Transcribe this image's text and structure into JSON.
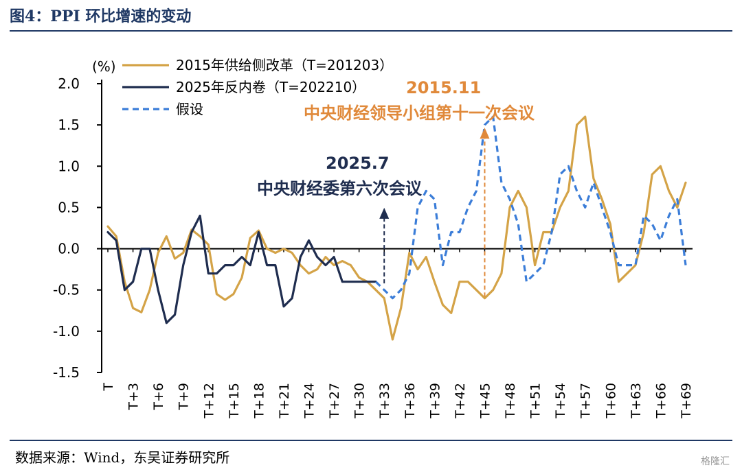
{
  "header": {
    "title": "图4：PPI 环比增速的变动"
  },
  "footer": {
    "source": "数据来源：Wind，东吴证券研究所",
    "watermark": "格隆汇"
  },
  "colors": {
    "s1": "#d4a347",
    "s2": "#1f2d4f",
    "s3": "#3b7dd8",
    "ann1": "#e0893a",
    "ann2": "#1f2d4f",
    "frame": "#1f3864"
  },
  "chart_data": {
    "type": "line",
    "unit_label": "(%)",
    "ylim": [
      -1.5,
      2.0
    ],
    "yticks": [
      "2.0",
      "1.5",
      "1.0",
      "0.5",
      "0.0",
      "-0.5",
      "-1.0",
      "-1.5"
    ],
    "ytick_values": [
      2.0,
      1.5,
      1.0,
      0.5,
      0.0,
      -0.5,
      -1.0,
      -1.5
    ],
    "x_ticks": [
      "T",
      "T+3",
      "T+6",
      "T+9",
      "T+12",
      "T+15",
      "T+18",
      "T+21",
      "T+24",
      "T+27",
      "T+30",
      "T+33",
      "T+36",
      "T+39",
      "T+42",
      "T+45",
      "T+48",
      "T+51",
      "T+54",
      "T+57",
      "T+60",
      "T+63",
      "T+66",
      "T+69"
    ],
    "x_tick_values": [
      0,
      3,
      6,
      9,
      12,
      15,
      18,
      21,
      24,
      27,
      30,
      33,
      36,
      39,
      42,
      45,
      48,
      51,
      54,
      57,
      60,
      63,
      66,
      69
    ],
    "legend": {
      "s1": "2015年供给侧改革（T=201203）",
      "s2": "2025年反内卷（T=202210）",
      "s3": "假设"
    },
    "series": [
      {
        "name": "2015年供给侧改革（T=201203）",
        "style": "solid",
        "x": [
          0,
          1,
          2,
          3,
          4,
          5,
          6,
          7,
          8,
          9,
          10,
          11,
          12,
          13,
          14,
          15,
          16,
          17,
          18,
          19,
          20,
          21,
          22,
          23,
          24,
          25,
          26,
          27,
          28,
          29,
          30,
          31,
          32,
          33,
          34,
          35,
          36,
          37,
          38,
          39,
          40,
          41,
          42,
          43,
          44,
          45,
          46,
          47,
          48,
          49,
          50,
          51,
          52,
          53,
          54,
          55,
          56,
          57,
          58,
          59,
          60,
          61,
          62,
          63,
          64,
          65,
          66,
          67,
          68,
          69
        ],
        "y": [
          0.27,
          0.15,
          -0.4,
          -0.72,
          -0.77,
          -0.5,
          -0.05,
          0.15,
          -0.12,
          -0.05,
          0.23,
          0.15,
          0.05,
          -0.55,
          -0.62,
          -0.55,
          -0.35,
          0.13,
          0.22,
          0.0,
          -0.05,
          0.0,
          -0.05,
          -0.2,
          -0.3,
          -0.25,
          -0.1,
          -0.2,
          -0.15,
          -0.2,
          -0.35,
          -0.4,
          -0.5,
          -0.6,
          -1.1,
          -0.72,
          -0.05,
          -0.25,
          -0.1,
          -0.4,
          -0.68,
          -0.78,
          -0.4,
          -0.4,
          -0.5,
          -0.6,
          -0.5,
          -0.3,
          0.5,
          0.7,
          0.5,
          -0.2,
          0.2,
          0.2,
          0.5,
          0.7,
          1.5,
          1.6,
          0.85,
          0.6,
          0.3,
          -0.4,
          -0.3,
          -0.2,
          0.2,
          0.9,
          1.0,
          0.7,
          0.5,
          0.8
        ]
      },
      {
        "name": "2025年反内卷（T=202210）",
        "style": "solid",
        "x": [
          0,
          1,
          2,
          3,
          4,
          5,
          6,
          7,
          8,
          9,
          10,
          11,
          12,
          13,
          14,
          15,
          16,
          17,
          18,
          19,
          20,
          21,
          22,
          23,
          24,
          25,
          26,
          27,
          28,
          29,
          30,
          31,
          32
        ],
        "y": [
          0.2,
          0.1,
          -0.5,
          -0.4,
          0.0,
          0.0,
          -0.5,
          -0.9,
          -0.8,
          -0.2,
          0.2,
          0.4,
          -0.3,
          -0.3,
          -0.2,
          -0.2,
          -0.1,
          -0.2,
          0.2,
          -0.2,
          -0.2,
          -0.7,
          -0.6,
          -0.1,
          0.1,
          -0.1,
          -0.2,
          -0.1,
          -0.4,
          -0.4,
          -0.4,
          -0.4,
          -0.4
        ]
      },
      {
        "name": "假设",
        "style": "dashed",
        "x": [
          32,
          33,
          34,
          35,
          36,
          37,
          38,
          39,
          40,
          41,
          42,
          43,
          44,
          45,
          46,
          47,
          48,
          49,
          50,
          51,
          52,
          53,
          54,
          55,
          56,
          57,
          58,
          59,
          60,
          61,
          62,
          63,
          64,
          65,
          66,
          67,
          68,
          69
        ],
        "y": [
          -0.4,
          -0.5,
          -0.6,
          -0.5,
          -0.3,
          0.5,
          0.7,
          0.6,
          -0.2,
          0.2,
          0.2,
          0.5,
          0.7,
          1.5,
          1.6,
          0.8,
          0.6,
          0.3,
          -0.4,
          -0.3,
          -0.2,
          0.2,
          0.9,
          1.0,
          0.7,
          0.5,
          0.8,
          0.5,
          0.2,
          -0.2,
          -0.2,
          -0.2,
          0.4,
          0.3,
          0.1,
          0.4,
          0.6,
          -0.2
        ]
      }
    ],
    "annotations": [
      {
        "date": "2015.11",
        "text": "中央财经领导小组第十一次会议",
        "x": 45,
        "y_from": -0.58,
        "y_to": 1.45
      },
      {
        "date": "2025.7",
        "text": "中央财经委第六次会议",
        "x": 33,
        "y_from": -0.42,
        "y_to": 0.48
      }
    ]
  }
}
